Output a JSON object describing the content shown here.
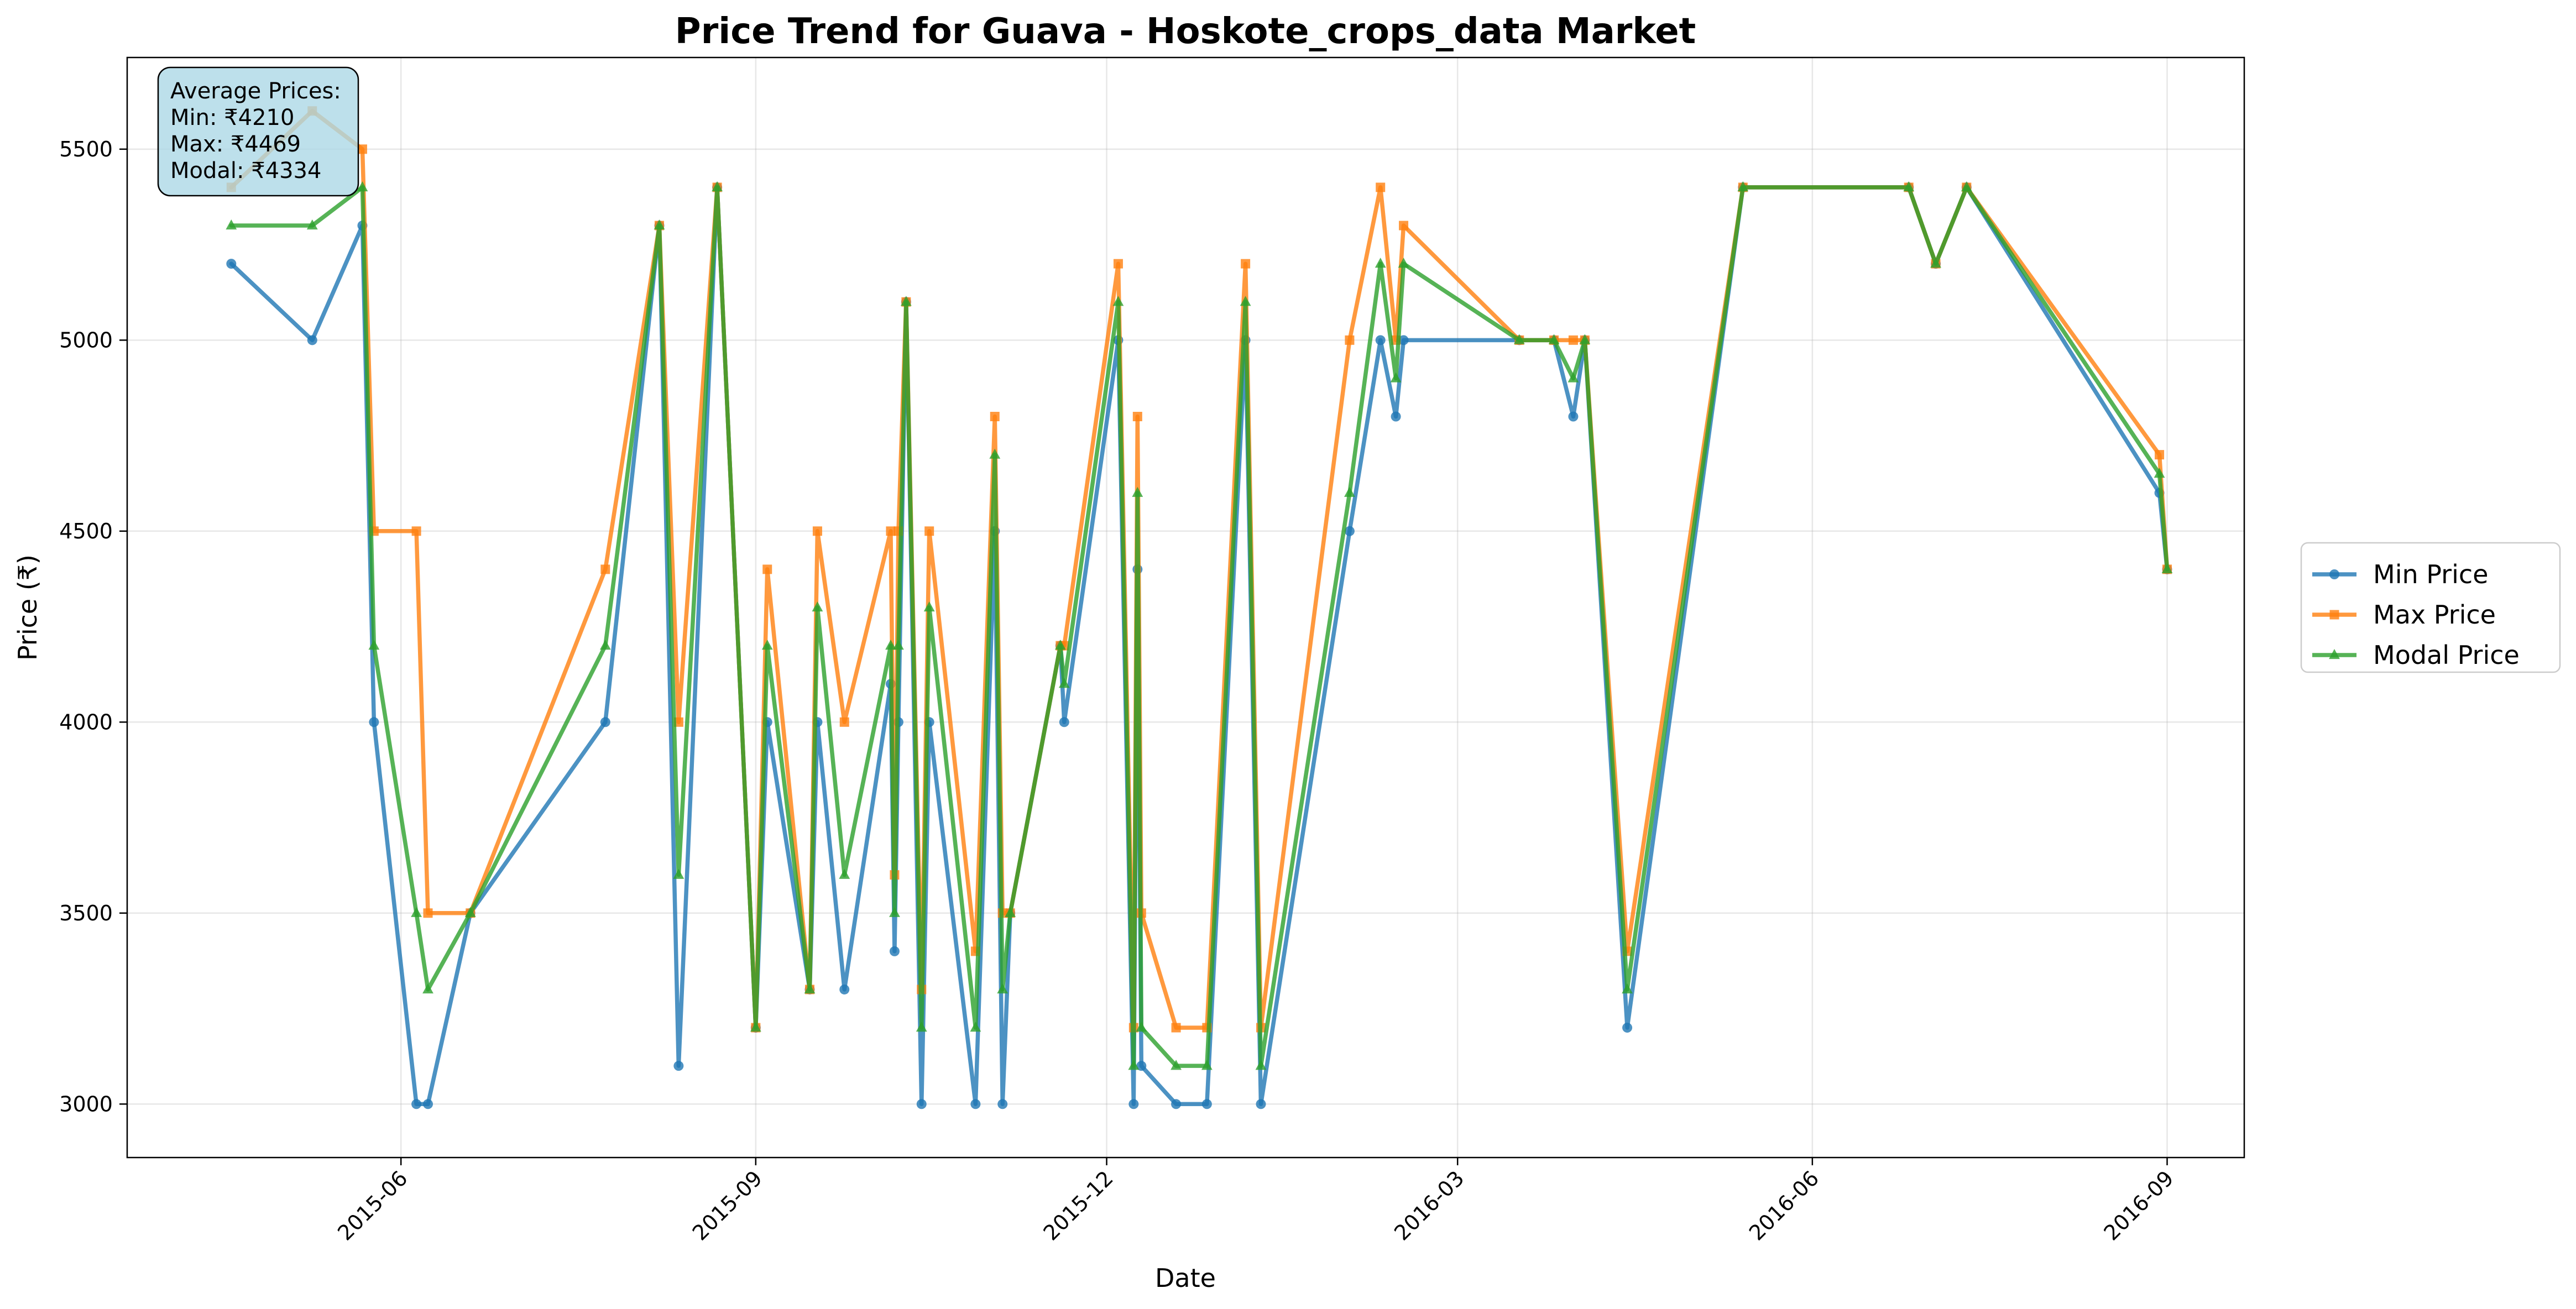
{
  "chart_data": {
    "type": "line",
    "title": "Price Trend for Guava - Hoskote_crops_data Market",
    "xlabel": "Date",
    "ylabel": "Price (₹)",
    "xlim": [
      "2015-03-22",
      "2016-09-21"
    ],
    "ylim": [
      2860,
      5740
    ],
    "x_ticks": [
      "2015-06-01",
      "2015-09-01",
      "2015-12-01",
      "2016-03-01",
      "2016-06-01",
      "2016-09-01"
    ],
    "x_tick_labels": [
      "2015-06",
      "2015-09",
      "2015-12",
      "2016-03",
      "2016-06",
      "2016-09"
    ],
    "y_ticks": [
      3000,
      3500,
      4000,
      4500,
      5000,
      5500
    ],
    "y_tick_labels": [
      "3000",
      "3500",
      "4000",
      "4500",
      "5000",
      "5500"
    ],
    "grid": true,
    "legend_position": "outside-right",
    "annotation": {
      "lines": [
        "Average Prices:",
        "Min: ₹4210",
        "Max: ₹4469",
        "Modal: ₹4334"
      ]
    },
    "x": [
      "2015-04-18",
      "2015-05-09",
      "2015-05-22",
      "2015-05-25",
      "2015-06-05",
      "2015-06-08",
      "2015-06-19",
      "2015-07-24",
      "2015-08-07",
      "2015-08-12",
      "2015-08-22",
      "2015-09-01",
      "2015-09-04",
      "2015-09-15",
      "2015-09-17",
      "2015-09-24",
      "2015-10-06",
      "2015-10-07",
      "2015-10-08",
      "2015-10-10",
      "2015-10-14",
      "2015-10-16",
      "2015-10-28",
      "2015-11-02",
      "2015-11-04",
      "2015-11-06",
      "2015-11-19",
      "2015-11-20",
      "2015-12-04",
      "2015-12-08",
      "2015-12-09",
      "2015-12-10",
      "2015-12-19",
      "2015-12-27",
      "2016-01-06",
      "2016-01-10",
      "2016-02-02",
      "2016-02-10",
      "2016-02-14",
      "2016-02-16",
      "2016-03-17",
      "2016-03-26",
      "2016-03-31",
      "2016-04-03",
      "2016-04-14",
      "2016-05-14",
      "2016-06-26",
      "2016-07-03",
      "2016-07-11",
      "2016-08-30",
      "2016-09-01"
    ],
    "series": [
      {
        "name": "Min Price",
        "color": "#1f77b4",
        "marker": "circle",
        "values": [
          5200,
          5000,
          5300,
          4000,
          3000,
          3000,
          3500,
          4000,
          5300,
          3100,
          5400,
          3200,
          4000,
          3300,
          4000,
          3300,
          4100,
          3400,
          4000,
          5100,
          3000,
          4000,
          3000,
          4500,
          3000,
          3500,
          4200,
          4000,
          5000,
          3000,
          4400,
          3100,
          3000,
          3000,
          5000,
          3000,
          4500,
          5000,
          4800,
          5000,
          5000,
          5000,
          4800,
          5000,
          3200,
          5400,
          5400,
          5200,
          5400,
          4600,
          4400
        ]
      },
      {
        "name": "Max Price",
        "color": "#ff7f0e",
        "marker": "square",
        "values": [
          5400,
          5600,
          5500,
          4500,
          4500,
          3500,
          3500,
          4400,
          5300,
          4000,
          5400,
          3200,
          4400,
          3300,
          4500,
          4000,
          4500,
          3600,
          4500,
          5100,
          3300,
          4500,
          3400,
          4800,
          3500,
          3500,
          4200,
          4200,
          5200,
          3200,
          4800,
          3500,
          3200,
          3200,
          5200,
          3200,
          5000,
          5400,
          5000,
          5300,
          5000,
          5000,
          5000,
          5000,
          3400,
          5400,
          5400,
          5200,
          5400,
          4700,
          4400
        ]
      },
      {
        "name": "Modal Price",
        "color": "#2ca02c",
        "marker": "triangle",
        "values": [
          5300,
          5300,
          5400,
          4200,
          3500,
          3300,
          3500,
          4200,
          5300,
          3600,
          5400,
          3200,
          4200,
          3300,
          4300,
          3600,
          4200,
          3500,
          4200,
          5100,
          3200,
          4300,
          3200,
          4700,
          3300,
          3500,
          4200,
          4100,
          5100,
          3100,
          4600,
          3200,
          3100,
          3100,
          5100,
          3100,
          4600,
          5200,
          4900,
          5200,
          5000,
          5000,
          4900,
          5000,
          3300,
          5400,
          5400,
          5200,
          5400,
          4650,
          4400
        ]
      }
    ]
  }
}
